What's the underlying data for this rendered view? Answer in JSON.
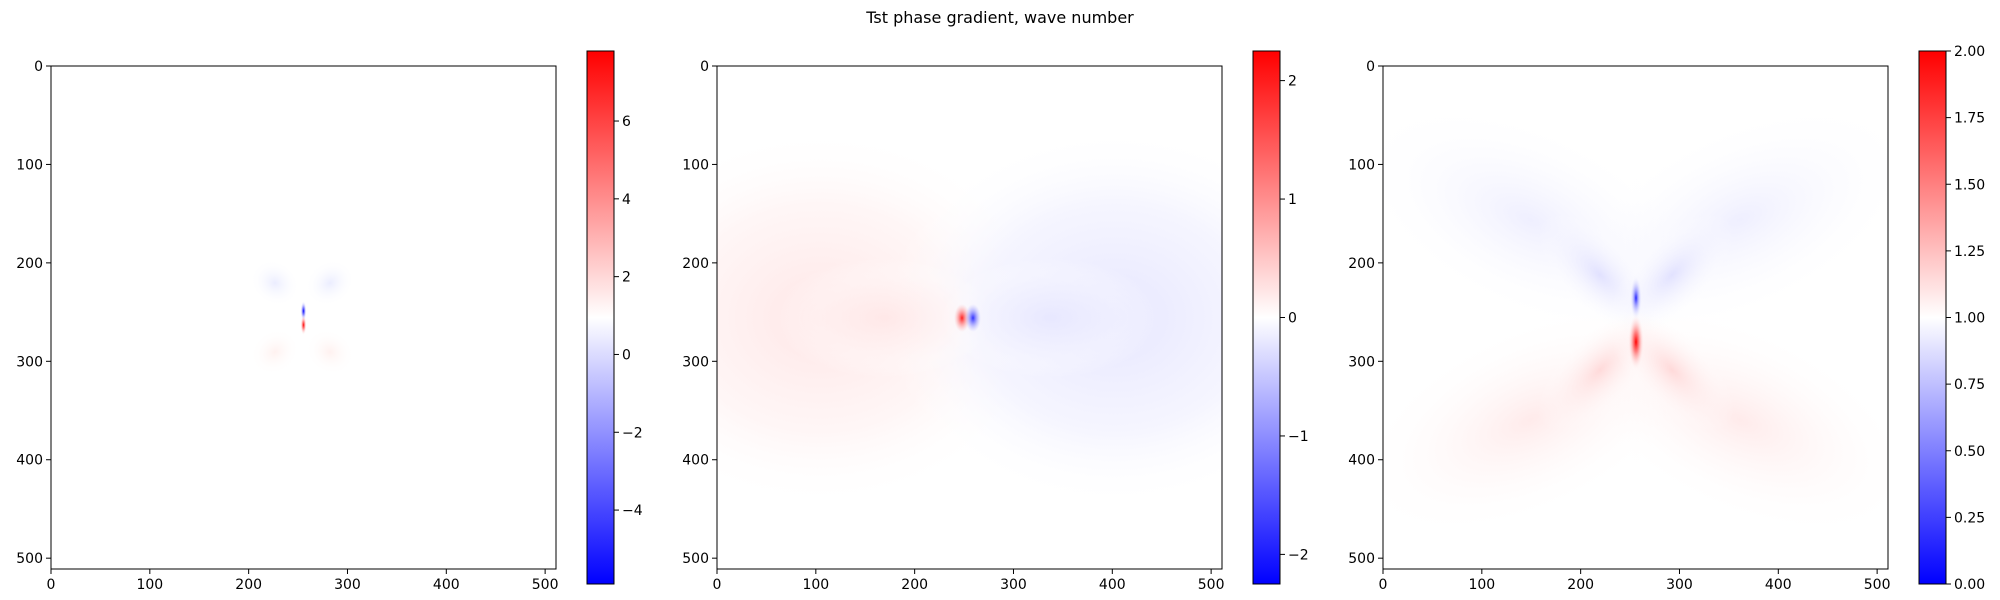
{
  "figure": {
    "title": "Tst phase gradient, wave number"
  },
  "chart_data": [
    {
      "type": "heatmap",
      "title": "",
      "xlabel": "",
      "ylabel": "",
      "xlim": [
        0,
        511
      ],
      "ylim": [
        511,
        0
      ],
      "x_ticks": [
        0,
        100,
        200,
        300,
        400,
        500
      ],
      "y_ticks": [
        0,
        100,
        200,
        300,
        400,
        500
      ],
      "colormap": "bwr",
      "colorbar": {
        "min": -5.9,
        "max": 7.8,
        "ticks": [
          -4,
          -2,
          0,
          2,
          4,
          6
        ],
        "tick_labels": [
          "−4",
          "−2",
          "0",
          "2",
          "4",
          "6"
        ]
      },
      "pattern": "vertical dipole at (256, 256): negative lobe above, positive lobe below, faint four-leaf halo"
    },
    {
      "type": "heatmap",
      "title": "",
      "xlabel": "",
      "ylabel": "",
      "xlim": [
        0,
        511
      ],
      "ylim": [
        511,
        0
      ],
      "x_ticks": [
        0,
        100,
        200,
        300,
        400,
        500
      ],
      "y_ticks": [
        0,
        100,
        200,
        300,
        400,
        500
      ],
      "colormap": "bwr",
      "colorbar": {
        "min": -2.25,
        "max": 2.25,
        "ticks": [
          -2,
          -1,
          0,
          1,
          2
        ],
        "tick_labels": [
          "−2",
          "−1",
          "0",
          "1",
          "2"
        ]
      },
      "pattern": "horizontal dipole at (256, 256): positive lobe to the left, negative lobe to the right"
    },
    {
      "type": "heatmap",
      "title": "",
      "xlabel": "",
      "ylabel": "",
      "xlim": [
        0,
        511
      ],
      "ylim": [
        511,
        0
      ],
      "x_ticks": [
        0,
        100,
        200,
        300,
        400,
        500
      ],
      "y_ticks": [
        0,
        100,
        200,
        300,
        400,
        500
      ],
      "colormap": "bwr",
      "colorbar": {
        "min": 0.0,
        "max": 2.0,
        "ticks": [
          0.0,
          0.25,
          0.5,
          0.75,
          1.0,
          1.25,
          1.5,
          1.75,
          2.0
        ],
        "tick_labels": [
          "0.00",
          "0.25",
          "0.50",
          "0.75",
          "1.00",
          "1.25",
          "1.50",
          "1.75",
          "2.00"
        ]
      },
      "pattern": "vertical dipole around baseline 1.0 at (256, 256): low (blue) above, high (red) below"
    }
  ]
}
